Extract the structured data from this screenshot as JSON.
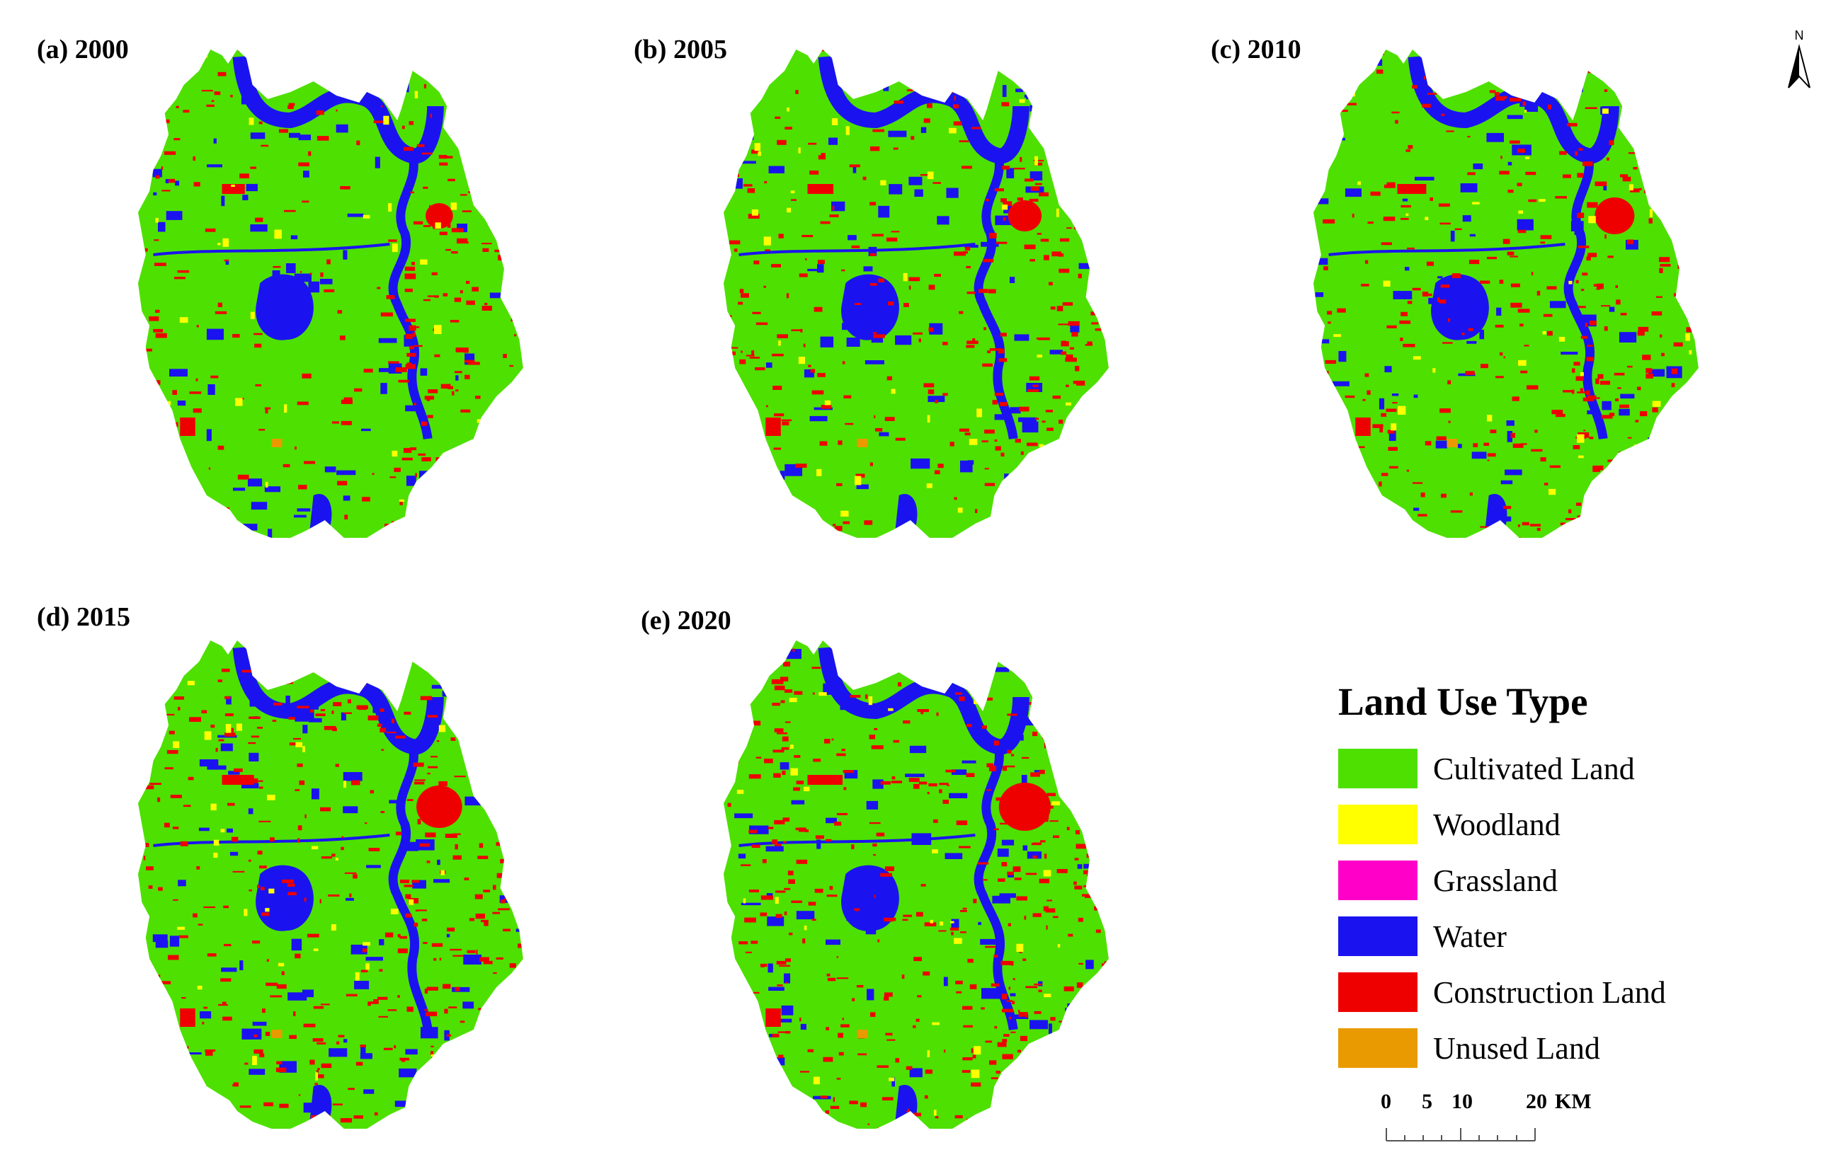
{
  "panels": [
    {
      "label": "(a) 2000"
    },
    {
      "label": "(b) 2005"
    },
    {
      "label": "(c) 2010"
    },
    {
      "label": "(d) 2015"
    },
    {
      "label": "(e) 2020"
    }
  ],
  "north_arrow": {
    "label": "N"
  },
  "legend": {
    "title": "Land Use Type",
    "items": [
      {
        "label": "Cultivated Land",
        "color": "#4ee000"
      },
      {
        "label": "Woodland",
        "color": "#ffff00"
      },
      {
        "label": "Grassland",
        "color": "#ff00c8"
      },
      {
        "label": "Water",
        "color": "#1a13f0"
      },
      {
        "label": "Construction Land",
        "color": "#ee0000"
      },
      {
        "label": "Unused Land",
        "color": "#e89a00"
      }
    ]
  },
  "scale_bar": {
    "ticks": [
      "0",
      "5",
      "10",
      "20"
    ],
    "unit": "KM"
  }
}
